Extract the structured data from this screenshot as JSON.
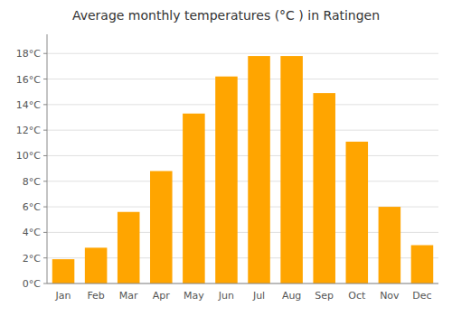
{
  "chart_data": {
    "type": "bar",
    "title": "Average monthly temperatures (°C ) in Ratingen",
    "categories": [
      "Jan",
      "Feb",
      "Mar",
      "Apr",
      "May",
      "Jun",
      "Jul",
      "Aug",
      "Sep",
      "Oct",
      "Nov",
      "Dec"
    ],
    "values": [
      1.9,
      2.8,
      5.6,
      8.8,
      13.3,
      16.2,
      17.8,
      17.8,
      14.9,
      11.1,
      6.0,
      3.0
    ],
    "color": "#FFA500",
    "ylim": [
      0,
      19.5
    ],
    "yticks": [
      {
        "value": 0,
        "label": "0°C"
      },
      {
        "value": 2,
        "label": "2°C"
      },
      {
        "value": 4,
        "label": "4°C"
      },
      {
        "value": 6,
        "label": "6°C"
      },
      {
        "value": 8,
        "label": "8°C"
      },
      {
        "value": 10,
        "label": "10°C"
      },
      {
        "value": 12,
        "label": "12°C"
      },
      {
        "value": 14,
        "label": "14°C"
      },
      {
        "value": 16,
        "label": "16°C"
      },
      {
        "value": 18,
        "label": "18°C"
      }
    ],
    "grid": true
  }
}
